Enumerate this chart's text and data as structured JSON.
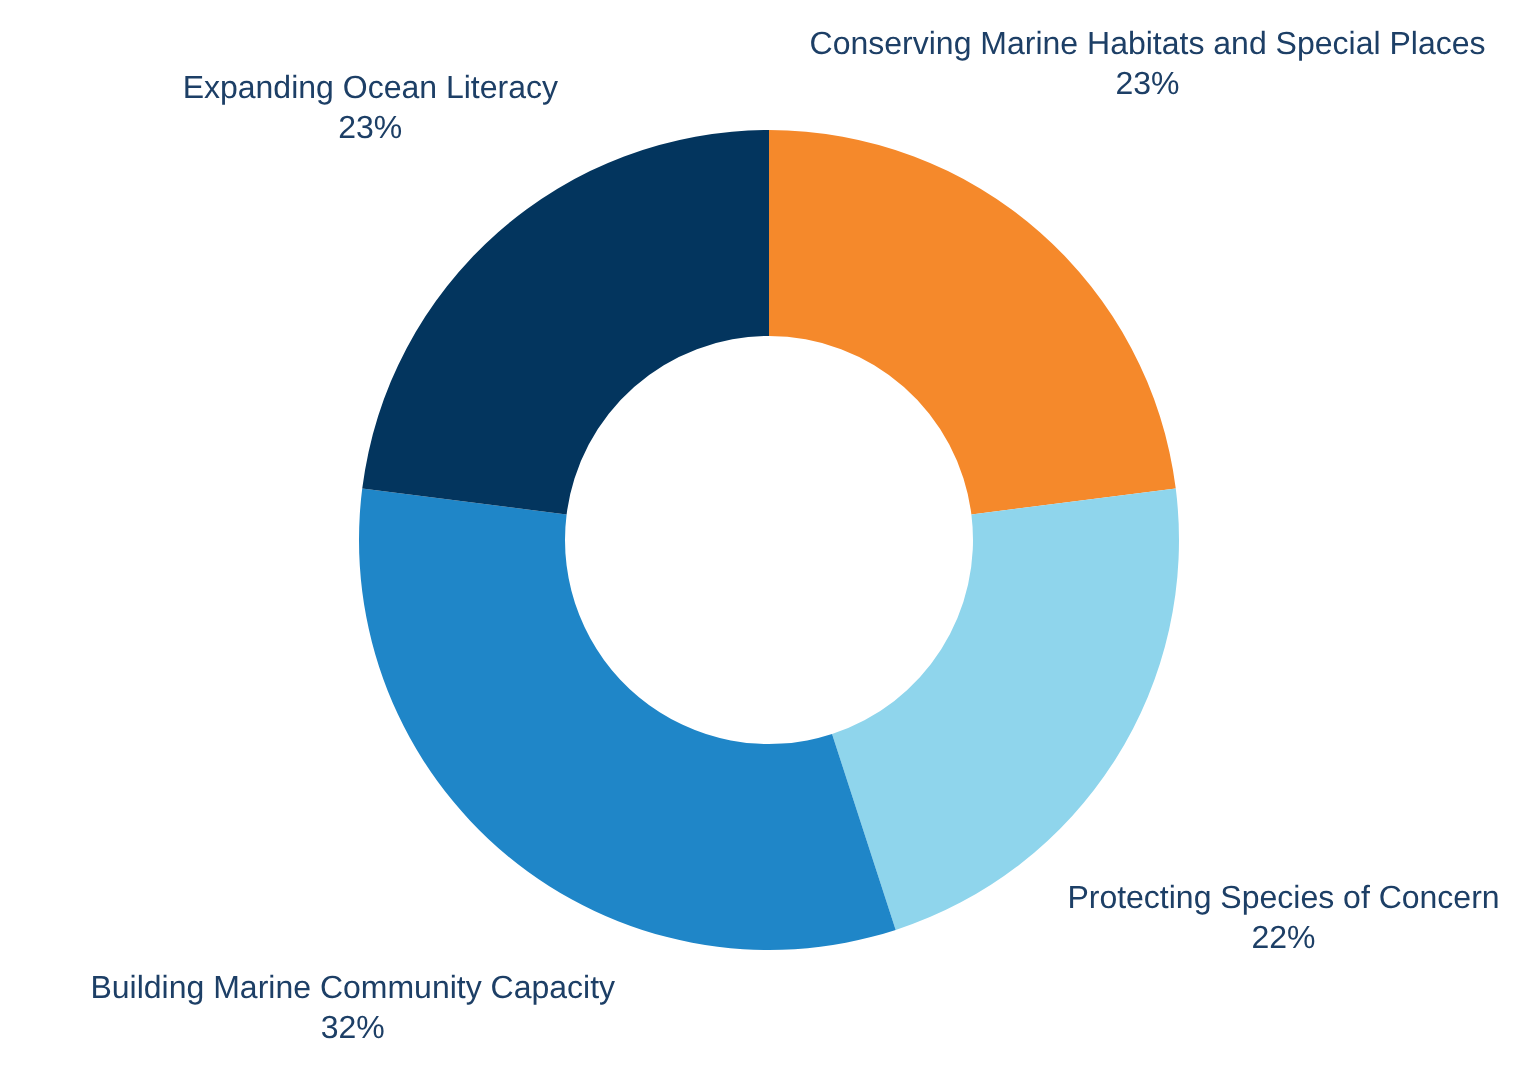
{
  "chart_data": {
    "type": "donut",
    "categories": [
      "Conserving Marine Habitats and Special Places",
      "Protecting Species of Concern",
      "Building Marine Community Capacity",
      "Expanding Ocean Literacy"
    ],
    "values": [
      23,
      22,
      32,
      23
    ],
    "value_labels": [
      "23%",
      "22%",
      "32%",
      "23%"
    ],
    "colors": [
      "#f5892b",
      "#8fd5ec",
      "#1f86c8",
      "#03355e"
    ]
  }
}
